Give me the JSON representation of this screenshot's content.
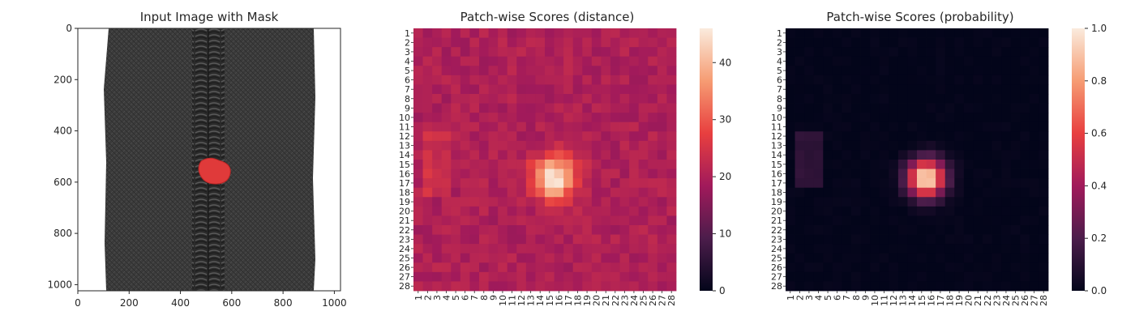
{
  "chart_data": [
    {
      "type": "image",
      "title": "Input Image with Mask",
      "xlim": [
        0,
        1024
      ],
      "ylim": [
        1024,
        0
      ],
      "xticks": [
        0,
        200,
        400,
        600,
        800,
        1000
      ],
      "yticks": [
        0,
        200,
        400,
        600,
        800,
        1000
      ],
      "image": {
        "background": "#ffffff",
        "fabric_extent_x": [
          112,
          912
        ],
        "zipper_teeth_x": [
          447,
          575
        ],
        "colors": {
          "fabric": "#3a3a3a",
          "teeth": "#2b2b2b",
          "mask": "#e03a3a"
        }
      },
      "mask": {
        "label": "defect mask",
        "center": [
          520,
          560
        ],
        "radius": 45
      }
    },
    {
      "type": "heatmap",
      "title": "Patch-wise Scores (distance)",
      "rows": 28,
      "cols": 28,
      "tick_labels": [
        "1",
        "2",
        "3",
        "4",
        "5",
        "6",
        "7",
        "8",
        "9",
        "10",
        "11",
        "12",
        "13",
        "14",
        "15",
        "16",
        "17",
        "18",
        "19",
        "20",
        "21",
        "22",
        "23",
        "24",
        "25",
        "26",
        "27",
        "28"
      ],
      "value_range": [
        0,
        46
      ],
      "colorbar_ticks": [
        0,
        10,
        20,
        30,
        40
      ],
      "colormap": "rocket",
      "field": {
        "base": 20,
        "blob": {
          "row": 16.5,
          "col": 15.5,
          "peak": 46,
          "sigma": 1.6
        },
        "left_band": {
          "rows": [
            12,
            18
          ],
          "cols": [
            2,
            4
          ],
          "value": 24
        }
      }
    },
    {
      "type": "heatmap",
      "title": "Patch-wise Scores (probability)",
      "rows": 28,
      "cols": 28,
      "tick_labels": [
        "1",
        "2",
        "3",
        "4",
        "5",
        "6",
        "7",
        "8",
        "9",
        "10",
        "11",
        "12",
        "13",
        "14",
        "15",
        "16",
        "17",
        "18",
        "19",
        "20",
        "21",
        "22",
        "23",
        "24",
        "25",
        "26",
        "27",
        "28"
      ],
      "value_range": [
        0.0,
        1.0
      ],
      "colorbar_ticks": [
        "0.0",
        "0.2",
        "0.4",
        "0.6",
        "0.8",
        "1.0"
      ],
      "colormap": "rocket",
      "field": {
        "base": 0.0,
        "blob": {
          "row": 16.5,
          "col": 15.5,
          "peak": 1.0,
          "sigma": 1.4
        },
        "left_band": {
          "rows": [
            12,
            17
          ],
          "cols": [
            2,
            4
          ],
          "value": 0.12
        }
      }
    }
  ]
}
